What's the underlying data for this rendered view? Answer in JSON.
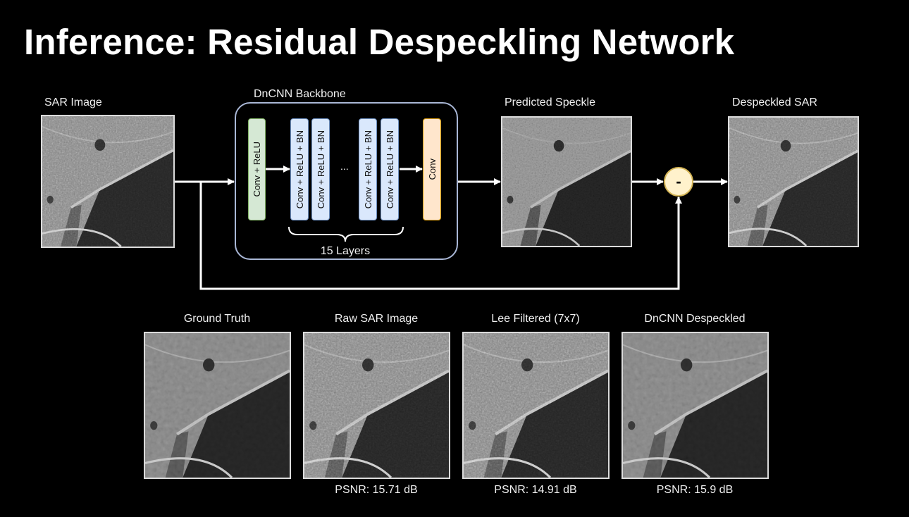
{
  "title": "Inference: Residual Despeckling Network",
  "pipeline": {
    "input_label": "SAR Image",
    "backbone_label": "DnCNN Backbone",
    "layers": {
      "first": "Conv + ReLU",
      "mid": [
        "Conv + ReLU + BN",
        "Conv + ReLU + BN",
        "Conv + ReLU + BN",
        "Conv + ReLU + BN"
      ],
      "ellipsis": "...",
      "last": "Conv"
    },
    "layer_count_label": "15 Layers",
    "predicted_label": "Predicted Speckle",
    "operator": "-",
    "output_label": "Despeckled SAR"
  },
  "comparison": [
    {
      "label": "Ground Truth",
      "psnr": ""
    },
    {
      "label": "Raw SAR Image",
      "psnr": "PSNR: 15.71 dB"
    },
    {
      "label": "Lee Filtered (7x7)",
      "psnr": "PSNR: 14.91 dB"
    },
    {
      "label": "DnCNN Despeckled",
      "psnr": "PSNR: 15.9 dB"
    }
  ],
  "colors": {
    "blue_layer": "#dae8fc",
    "green_layer": "#d5e8d4",
    "orange_layer": "#ffe6cc",
    "operator_fill": "#fff2cc",
    "backbone_border": "#a9b7d6"
  }
}
